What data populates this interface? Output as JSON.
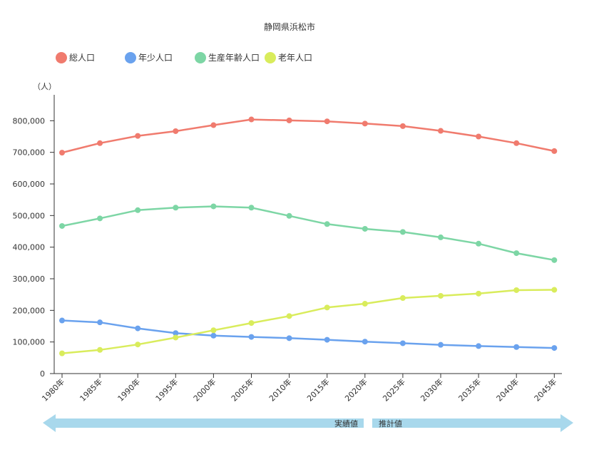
{
  "chart_data": {
    "type": "line",
    "title": "静岡県浜松市",
    "ylabel": "（人）",
    "xlabel": "",
    "ylim": [
      0,
      900000
    ],
    "yticks": [
      0,
      100000,
      200000,
      300000,
      400000,
      500000,
      600000,
      700000,
      800000
    ],
    "ytick_labels": [
      "0",
      "100,000",
      "200,000",
      "300,000",
      "400,000",
      "500,000",
      "600,000",
      "700,000",
      "800,000"
    ],
    "categories": [
      "1980年",
      "1985年",
      "1990年",
      "1995年",
      "2000年",
      "2005年",
      "2010年",
      "2015年",
      "2020年",
      "2025年",
      "2030年",
      "2035年",
      "2040年",
      "2045年"
    ],
    "series": [
      {
        "name": "総人口",
        "color": "#f07b6e",
        "values": [
          699000,
          729000,
          752000,
          767000,
          786000,
          804000,
          801000,
          798000,
          791000,
          783000,
          768000,
          750000,
          729000,
          704000
        ]
      },
      {
        "name": "年少人口",
        "color": "#6aa2ee",
        "values": [
          168000,
          162000,
          143000,
          128000,
          120000,
          116000,
          112000,
          107000,
          101000,
          96000,
          91000,
          87000,
          84000,
          81000
        ]
      },
      {
        "name": "生産年齢人口",
        "color": "#7dd6a5",
        "values": [
          467000,
          491000,
          517000,
          525000,
          529000,
          525000,
          499000,
          473000,
          458000,
          448000,
          431000,
          411000,
          381000,
          359000
        ]
      },
      {
        "name": "老年人口",
        "color": "#d9ec5c",
        "values": [
          64000,
          75000,
          92000,
          114000,
          137000,
          160000,
          182000,
          209000,
          221000,
          239000,
          246000,
          253000,
          264000,
          265000
        ]
      }
    ],
    "legend_position": "top-left",
    "grid": false
  },
  "timeline": {
    "actual_label": "実績値",
    "forecast_label": "推計値",
    "color": "#a8d8ec"
  }
}
